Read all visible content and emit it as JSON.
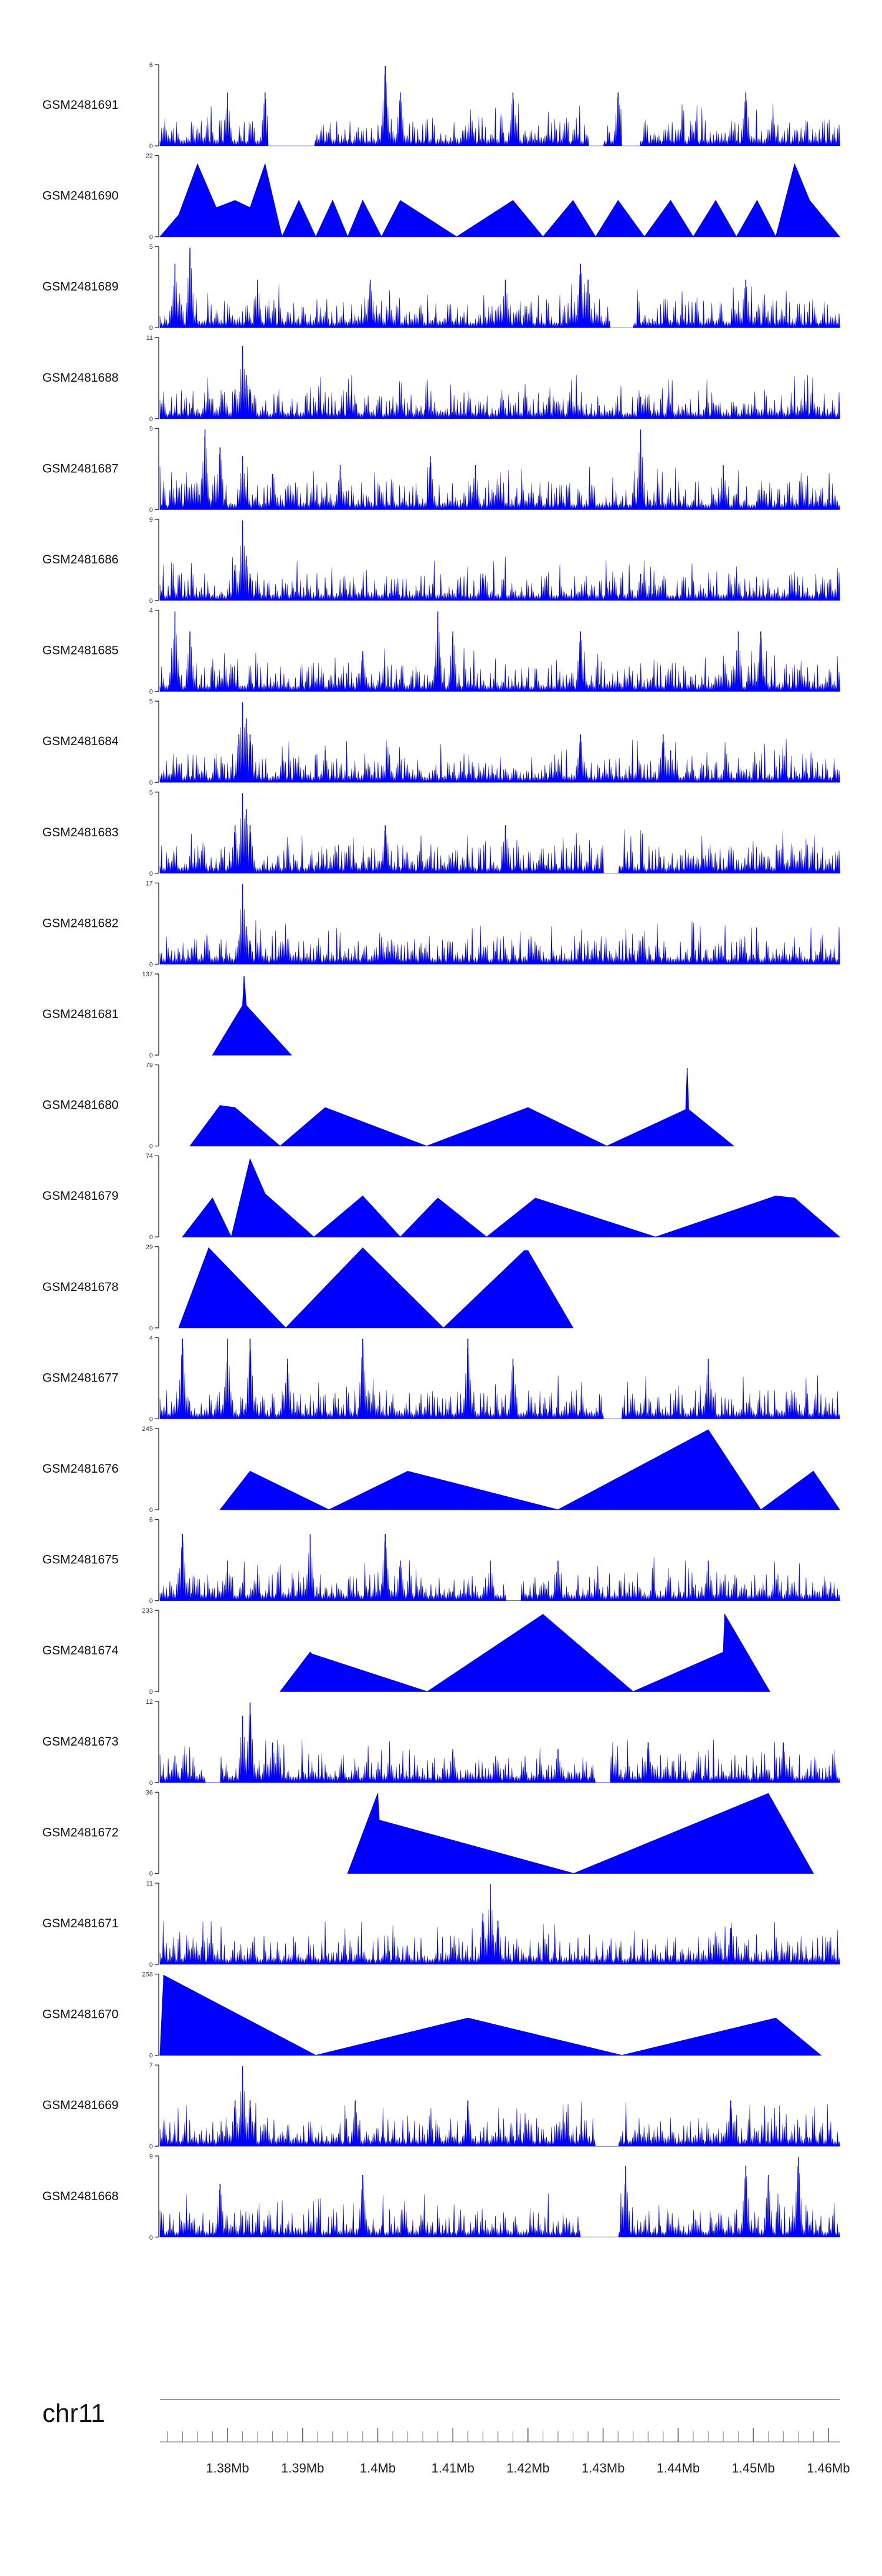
{
  "chart_data": {
    "type": "area",
    "title": "",
    "xlabel": "",
    "ylabel": "",
    "xlim": [
      1371000,
      1461500
    ],
    "x_ticks": [
      {
        "value": 1380000,
        "label": "1.38Mb"
      },
      {
        "value": 1390000,
        "label": "1.39Mb"
      },
      {
        "value": 1400000,
        "label": "1.4Mb"
      },
      {
        "value": 1410000,
        "label": "1.41Mb"
      },
      {
        "value": 1420000,
        "label": "1.42Mb"
      },
      {
        "value": 1430000,
        "label": "1.43Mb"
      },
      {
        "value": 1440000,
        "label": "1.44Mb"
      },
      {
        "value": 1450000,
        "label": "1.45Mb"
      },
      {
        "value": 1460000,
        "label": "1.46Mb"
      }
    ],
    "chromosome": "chr11",
    "fill_color": "#0000ff",
    "tracks": [
      {
        "name": "GSM2481691",
        "ymax": 6,
        "style": "dense",
        "peaks": [
          [
            1380000,
            4
          ],
          [
            1385000,
            4
          ],
          [
            1401000,
            6
          ],
          [
            1403000,
            4
          ],
          [
            1418000,
            4
          ],
          [
            1432000,
            4
          ],
          [
            1449000,
            4
          ]
        ],
        "gaps": [
          [
            1385500,
            1391500
          ],
          [
            1428000,
            1430000
          ],
          [
            1432500,
            1435000
          ]
        ]
      },
      {
        "name": "GSM2481690",
        "ymax": 22,
        "style": "sparse",
        "peaks": [
          [
            1373500,
            6
          ],
          [
            1376000,
            20
          ],
          [
            1378500,
            8
          ],
          [
            1381000,
            10
          ],
          [
            1383000,
            8
          ],
          [
            1385000,
            20
          ],
          [
            1389500,
            10
          ],
          [
            1394000,
            10
          ],
          [
            1398000,
            10
          ],
          [
            1403000,
            10
          ],
          [
            1418000,
            10
          ],
          [
            1426000,
            10
          ],
          [
            1432000,
            10
          ],
          [
            1439000,
            10
          ],
          [
            1445000,
            10
          ],
          [
            1450500,
            10
          ],
          [
            1455500,
            20
          ],
          [
            1457500,
            10
          ]
        ],
        "gaps": [
          [
            1407000,
            1410000
          ]
        ]
      },
      {
        "name": "GSM2481689",
        "ymax": 5,
        "style": "dense",
        "peaks": [
          [
            1373000,
            4
          ],
          [
            1375000,
            5
          ],
          [
            1384000,
            3
          ],
          [
            1399000,
            3
          ],
          [
            1417000,
            3
          ],
          [
            1427000,
            4
          ],
          [
            1428000,
            3
          ],
          [
            1449000,
            3
          ]
        ],
        "gaps": [
          [
            1431000,
            1434000
          ]
        ]
      },
      {
        "name": "GSM2481688",
        "ymax": 11,
        "style": "dense",
        "peaks": [
          [
            1381000,
            4
          ],
          [
            1382000,
            10
          ],
          [
            1382500,
            6
          ],
          [
            1383000,
            4
          ],
          [
            1397000,
            2
          ],
          [
            1435000,
            3
          ],
          [
            1441000,
            2
          ]
        ],
        "gaps": []
      },
      {
        "name": "GSM2481687",
        "ymax": 9,
        "style": "dense",
        "peaks": [
          [
            1377000,
            9
          ],
          [
            1379000,
            7
          ],
          [
            1382000,
            6
          ],
          [
            1386000,
            4
          ],
          [
            1395000,
            5
          ],
          [
            1407000,
            6
          ],
          [
            1413000,
            5
          ],
          [
            1435000,
            9
          ],
          [
            1446000,
            5
          ]
        ],
        "gaps": []
      },
      {
        "name": "GSM2481686",
        "ymax": 9,
        "style": "dense",
        "peaks": [
          [
            1381000,
            4
          ],
          [
            1382000,
            9
          ],
          [
            1382500,
            5
          ],
          [
            1383000,
            3
          ],
          [
            1414000,
            3
          ],
          [
            1435000,
            3
          ]
        ],
        "gaps": []
      },
      {
        "name": "GSM2481685",
        "ymax": 4,
        "style": "dense",
        "peaks": [
          [
            1373000,
            4
          ],
          [
            1375000,
            3
          ],
          [
            1398000,
            2
          ],
          [
            1408000,
            4
          ],
          [
            1410000,
            3
          ],
          [
            1427000,
            3
          ],
          [
            1448000,
            3
          ],
          [
            1451000,
            3
          ]
        ],
        "gaps": []
      },
      {
        "name": "GSM2481684",
        "ymax": 5,
        "style": "dense",
        "peaks": [
          [
            1381500,
            3
          ],
          [
            1382000,
            5
          ],
          [
            1382500,
            4
          ],
          [
            1383000,
            3
          ],
          [
            1393000,
            2
          ],
          [
            1427000,
            3
          ],
          [
            1438000,
            3
          ],
          [
            1439000,
            2
          ]
        ],
        "gaps": []
      },
      {
        "name": "GSM2481683",
        "ymax": 5,
        "style": "dense",
        "peaks": [
          [
            1381000,
            3
          ],
          [
            1382000,
            5
          ],
          [
            1382500,
            4
          ],
          [
            1383000,
            3
          ],
          [
            1401000,
            3
          ],
          [
            1417000,
            3
          ]
        ],
        "gaps": [
          [
            1430000,
            1432000
          ]
        ]
      },
      {
        "name": "GSM2481682",
        "ymax": 17,
        "style": "dense",
        "peaks": [
          [
            1381500,
            5
          ],
          [
            1382000,
            17
          ],
          [
            1382500,
            8
          ],
          [
            1383000,
            5
          ],
          [
            1398000,
            2
          ],
          [
            1434000,
            2
          ],
          [
            1450000,
            2
          ]
        ],
        "gaps": []
      },
      {
        "name": "GSM2481681",
        "ymax": 137,
        "style": "sparse",
        "peaks": [
          [
            1382000,
            85
          ],
          [
            1382200,
            135
          ],
          [
            1382500,
            85
          ]
        ],
        "gaps": []
      },
      {
        "name": "GSM2481680",
        "ymax": 79,
        "style": "sparse",
        "peaks": [
          [
            1379000,
            40
          ],
          [
            1381000,
            38
          ],
          [
            1393000,
            38
          ],
          [
            1420000,
            38
          ],
          [
            1441000,
            36
          ],
          [
            1441200,
            77
          ],
          [
            1441400,
            36
          ]
        ],
        "gaps": []
      },
      {
        "name": "GSM2481679",
        "ymax": 74,
        "style": "sparse",
        "peaks": [
          [
            1378000,
            36
          ],
          [
            1383000,
            72
          ],
          [
            1385000,
            40
          ],
          [
            1398000,
            38
          ],
          [
            1408000,
            36
          ],
          [
            1421000,
            36
          ],
          [
            1453000,
            38
          ],
          [
            1455500,
            36
          ]
        ],
        "gaps": []
      },
      {
        "name": "GSM2481678",
        "ymax": 29,
        "style": "sparse",
        "peaks": [
          [
            1377500,
            29
          ],
          [
            1398000,
            29
          ],
          [
            1419500,
            28
          ],
          [
            1420000,
            28
          ]
        ],
        "gaps": []
      },
      {
        "name": "GSM2481677",
        "ymax": 4,
        "style": "dense",
        "peaks": [
          [
            1374000,
            4
          ],
          [
            1380000,
            4
          ],
          [
            1383000,
            4
          ],
          [
            1388000,
            3
          ],
          [
            1398000,
            4
          ],
          [
            1412000,
            4
          ],
          [
            1418000,
            3
          ],
          [
            1444000,
            3
          ]
        ],
        "gaps": [
          [
            1430000,
            1432500
          ]
        ]
      },
      {
        "name": "GSM2481676",
        "ymax": 245,
        "style": "sparse",
        "peaks": [
          [
            1383000,
            118
          ],
          [
            1404000,
            118
          ],
          [
            1444000,
            245
          ],
          [
            1458000,
            118
          ]
        ],
        "gaps": []
      },
      {
        "name": "GSM2481675",
        "ymax": 6,
        "style": "dense",
        "peaks": [
          [
            1374000,
            5
          ],
          [
            1380000,
            3
          ],
          [
            1391000,
            5
          ],
          [
            1401000,
            5
          ],
          [
            1403000,
            3
          ],
          [
            1415000,
            3
          ],
          [
            1424000,
            3
          ],
          [
            1444000,
            3
          ]
        ],
        "gaps": [
          [
            1417000,
            1419000
          ]
        ]
      },
      {
        "name": "GSM2481674",
        "ymax": 233,
        "style": "sparse",
        "peaks": [
          [
            1391000,
            115
          ],
          [
            1391200,
            110
          ],
          [
            1422000,
            225
          ],
          [
            1446000,
            115
          ],
          [
            1446200,
            225
          ]
        ],
        "gaps": []
      },
      {
        "name": "GSM2481673",
        "ymax": 12,
        "style": "dense",
        "peaks": [
          [
            1373000,
            4
          ],
          [
            1382000,
            10
          ],
          [
            1383000,
            12
          ],
          [
            1386000,
            6
          ],
          [
            1410000,
            5
          ],
          [
            1424000,
            5
          ],
          [
            1436000,
            6
          ],
          [
            1454000,
            6
          ]
        ],
        "gaps": [
          [
            1377000,
            1379000
          ],
          [
            1429000,
            1431000
          ]
        ]
      },
      {
        "name": "GSM2481672",
        "ymax": 36,
        "style": "sparse",
        "peaks": [
          [
            1400000,
            36
          ],
          [
            1400200,
            24
          ],
          [
            1452000,
            36
          ]
        ],
        "gaps": []
      },
      {
        "name": "GSM2481671",
        "ymax": 11,
        "style": "dense",
        "peaks": [
          [
            1414000,
            7
          ],
          [
            1415000,
            11
          ],
          [
            1416000,
            6
          ],
          [
            1447000,
            5
          ]
        ],
        "gaps": []
      },
      {
        "name": "GSM2481670",
        "ymax": 258,
        "style": "sparse",
        "peaks": [
          [
            1371500,
            258
          ],
          [
            1412000,
            120
          ],
          [
            1453000,
            120
          ]
        ],
        "gaps": []
      },
      {
        "name": "GSM2481669",
        "ymax": 7,
        "style": "dense",
        "peaks": [
          [
            1381000,
            4
          ],
          [
            1382000,
            7
          ],
          [
            1383000,
            4
          ],
          [
            1397000,
            4
          ],
          [
            1412000,
            4
          ],
          [
            1447000,
            4
          ]
        ],
        "gaps": [
          [
            1429000,
            1432000
          ]
        ]
      },
      {
        "name": "GSM2481668",
        "ymax": 9,
        "style": "dense",
        "peaks": [
          [
            1379000,
            6
          ],
          [
            1398000,
            7
          ],
          [
            1433000,
            8
          ],
          [
            1449000,
            8
          ],
          [
            1452000,
            7
          ],
          [
            1456000,
            9
          ]
        ],
        "gaps": [
          [
            1427000,
            1432000
          ]
        ]
      }
    ]
  }
}
